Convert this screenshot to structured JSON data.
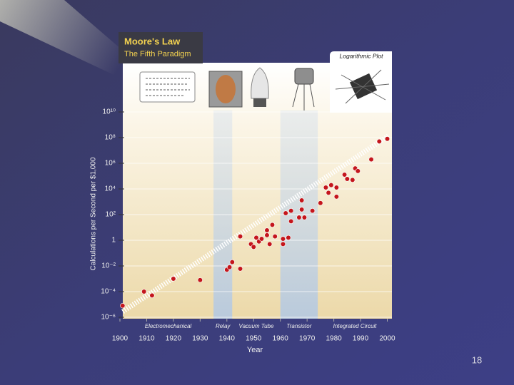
{
  "slide_number": "18",
  "chart_data": {
    "type": "scatter",
    "title": "Moore's Law",
    "subtitle": "The Fifth Paradigm",
    "annotation": "Logarithmic Plot",
    "x_label": "Year",
    "y_label": "Calculations per Second per $1,000",
    "y_log": true,
    "color": "#c4161c",
    "xlim": [
      1900,
      2002
    ],
    "xticks": [
      1900,
      1910,
      1920,
      1930,
      1940,
      1950,
      1960,
      1970,
      1980,
      1990,
      2000
    ],
    "ylim": [
      1e-06,
      10000000000.0
    ],
    "yticks": [
      {
        "value": 10000000000.0,
        "label": "10¹⁰"
      },
      {
        "value": 100000000.0,
        "label": "10⁸"
      },
      {
        "value": 1000000.0,
        "label": "10⁶"
      },
      {
        "value": 10000.0,
        "label": "10⁴"
      },
      {
        "value": 100,
        "label": "10²"
      },
      1,
      {
        "value": 0.01,
        "label": "10⁻²"
      },
      {
        "value": 0.0001,
        "label": "10⁻⁴"
      },
      {
        "value": 1e-06,
        "label": "10⁻⁶"
      }
    ],
    "eras": [
      {
        "label": "Electromechanical",
        "start": 1900,
        "end": 1935,
        "shaded": false
      },
      {
        "label": "Relay",
        "start": 1935,
        "end": 1942,
        "shaded": true
      },
      {
        "label": "Vacuum Tube",
        "start": 1942,
        "end": 1960,
        "shaded": false
      },
      {
        "label": "Transistor",
        "start": 1960,
        "end": 1974,
        "shaded": true
      },
      {
        "label": "Integrated Circuit",
        "start": 1974,
        "end": 2002,
        "shaded": false
      }
    ],
    "x": [
      1901,
      1909,
      1912,
      1920,
      1930,
      1940,
      1941,
      1942,
      1945,
      1945,
      1949,
      1950,
      1951,
      1952,
      1953,
      1955,
      1956,
      1955,
      1957,
      1958,
      1961,
      1961,
      1963,
      1962,
      1964,
      1964,
      1967,
      1968,
      1968,
      1969,
      1972,
      1975,
      1977,
      1978,
      1979,
      1981,
      1981,
      1984,
      1985,
      1987,
      1988,
      1989,
      1994,
      1997,
      2000
    ],
    "values": [
      8e-06,
      0.0001,
      5e-05,
      0.001,
      0.0008,
      0.005,
      0.008,
      0.02,
      0.006,
      2,
      0.5,
      0.3,
      1.6,
      0.8,
      1.3,
      2.5,
      0.5,
      6,
      16,
      2,
      0.5,
      1.3,
      1.6,
      130,
      200,
      30,
      60,
      250,
      1300,
      60,
      200,
      800,
      13000,
      5000,
      20000,
      2500,
      13000,
      130000,
      60000,
      50000,
      400000,
      250000,
      2000000,
      50000000,
      80000000
    ]
  }
}
